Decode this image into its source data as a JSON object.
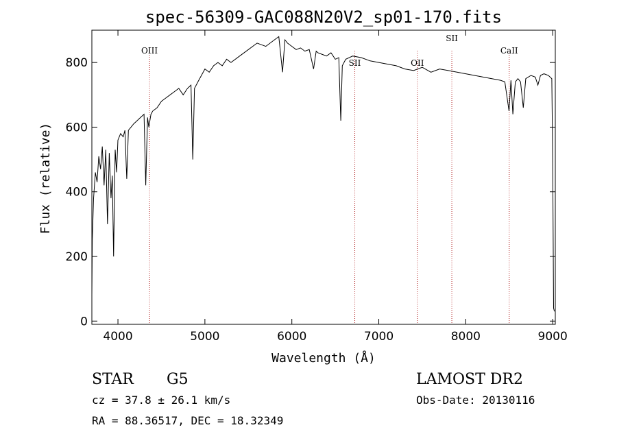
{
  "chart_data": {
    "type": "line",
    "title": "spec-56309-GAC088N20V2_sp01-170.fits",
    "xlabel": "Wavelength (Å)",
    "ylabel": "Flux (relative)",
    "xlim": [
      3700,
      9030
    ],
    "ylim": [
      -10,
      900
    ],
    "xticks": [
      4000,
      5000,
      6000,
      7000,
      8000,
      9000
    ],
    "yticks": [
      0,
      200,
      400,
      600,
      800
    ],
    "grid": false,
    "line_color": "#000000",
    "marker_color": "#b22222",
    "spectrum": {
      "x": [
        3700,
        3705,
        3720,
        3740,
        3760,
        3780,
        3800,
        3820,
        3840,
        3860,
        3880,
        3900,
        3920,
        3935,
        3950,
        3968,
        3985,
        4000,
        4030,
        4060,
        4080,
        4101,
        4120,
        4150,
        4180,
        4220,
        4260,
        4300,
        4320,
        4340,
        4355,
        4380,
        4400,
        4450,
        4500,
        4550,
        4600,
        4650,
        4700,
        4750,
        4800,
        4840,
        4861,
        4880,
        4920,
        4960,
        5000,
        5050,
        5100,
        5150,
        5200,
        5250,
        5300,
        5400,
        5500,
        5600,
        5700,
        5800,
        5850,
        5893,
        5920,
        5950,
        6000,
        6050,
        6100,
        6150,
        6200,
        6250,
        6280,
        6300,
        6350,
        6400,
        6450,
        6500,
        6540,
        6563,
        6580,
        6620,
        6700,
        6800,
        6900,
        7000,
        7100,
        7200,
        7300,
        7400,
        7500,
        7600,
        7700,
        7800,
        7900,
        8000,
        8100,
        8200,
        8300,
        8400,
        8450,
        8498,
        8520,
        8542,
        8570,
        8600,
        8630,
        8662,
        8690,
        8750,
        8800,
        8830,
        8860,
        8900,
        8950,
        8990,
        9000,
        9010,
        9020
      ],
      "y": [
        80,
        250,
        380,
        460,
        430,
        510,
        470,
        540,
        420,
        530,
        300,
        520,
        380,
        450,
        200,
        530,
        460,
        560,
        580,
        570,
        590,
        440,
        590,
        600,
        610,
        620,
        630,
        640,
        420,
        630,
        600,
        640,
        650,
        660,
        680,
        690,
        700,
        710,
        720,
        700,
        720,
        730,
        500,
        720,
        740,
        760,
        780,
        770,
        790,
        800,
        790,
        810,
        800,
        820,
        840,
        860,
        850,
        870,
        880,
        770,
        870,
        860,
        850,
        840,
        845,
        835,
        840,
        780,
        835,
        830,
        825,
        820,
        830,
        810,
        815,
        620,
        790,
        810,
        820,
        815,
        805,
        800,
        795,
        790,
        780,
        775,
        785,
        770,
        780,
        775,
        770,
        765,
        760,
        755,
        750,
        745,
        740,
        650,
        745,
        640,
        740,
        750,
        740,
        660,
        750,
        760,
        755,
        730,
        760,
        765,
        760,
        750,
        500,
        40,
        30
      ]
    },
    "marker_lines": [
      {
        "x": 4363,
        "label": "OIII"
      },
      {
        "x": 6724,
        "label": "SII"
      },
      {
        "x": 7444,
        "label": "OII"
      },
      {
        "x": 7840,
        "label": "SII"
      },
      {
        "x": 8500,
        "label": "CaII"
      }
    ]
  },
  "info": {
    "class": "STAR",
    "subclass": "G5",
    "survey": "LAMOST DR2",
    "cz": "cz = 37.8 ± 26.1 km/s",
    "obs_date": "Obs-Date: 20130116",
    "coords": "RA =  88.36517, DEC =  18.32349"
  }
}
